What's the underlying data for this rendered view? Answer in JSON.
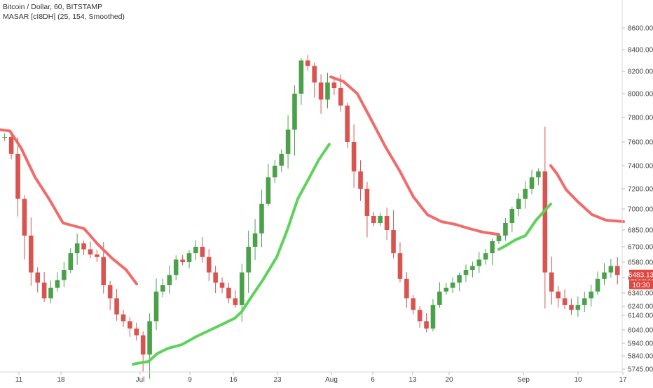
{
  "chart_data": {
    "type": "line",
    "title": "Bitcoin / Dollar, 60, BITSTAMP",
    "subtitle": "MASAR [cI8DH] (25, 154, Smoothed)",
    "y_tick_labels": [
      "5745.00",
      "5840.00",
      "5940.00",
      "6040.00",
      "6140.00",
      "6240.00",
      "6340.00",
      "6460.00",
      "6580.00",
      "6700.00",
      "6850.00",
      "7000.00",
      "7200.00",
      "7400.00",
      "7600.00",
      "7800.00",
      "8000.00",
      "8200.00",
      "8400.00",
      "8600.00"
    ],
    "x_tick_labels": [
      "11",
      "18",
      "Jul",
      "9",
      "16",
      "23",
      "Aug",
      "6",
      "13",
      "20",
      "Sep",
      "10",
      "17"
    ],
    "ylim": [
      5745,
      8600
    ],
    "price_badge": "6483.13",
    "time_badge": "10:30",
    "colors": {
      "bear_line": "#f26b6b",
      "bull_line": "#5ed35b",
      "badge": "#e0473f",
      "candle_up": "#4aa14a",
      "candle_down": "#d9534f"
    },
    "series": [
      {
        "type": "line",
        "color": "#f26b6b",
        "segments": [
          {
            "x": [
              0,
              14,
              30,
              50,
              70,
              90,
              105,
              120,
              140,
              160,
              180,
              195
            ],
            "y": [
              7700,
              7690,
              7550,
              7300,
              7100,
              6900,
              6880,
              6860,
              6720,
              6610,
              6520,
              6410
            ]
          },
          {
            "x": [
              472,
              490,
              510,
              530,
              550,
              570,
              590,
              610,
              630,
              650,
              670,
              690,
              712
            ],
            "y": [
              8150,
              8110,
              8000,
              7780,
              7560,
              7360,
              7120,
              6960,
              6910,
              6890,
              6860,
              6830,
              6810
            ]
          },
          {
            "x": [
              786,
              795,
              808,
              825,
              845,
              865,
              890
            ],
            "y": [
              7400,
              7330,
              7190,
              7070,
              6960,
              6920,
              6910
            ]
          }
        ]
      },
      {
        "type": "line",
        "color": "#5ed35b",
        "segments": [
          {
            "x": [
              190,
              200,
              212,
              225,
              240,
              260,
              280,
              300,
              318,
              335,
              345,
              355,
              375,
              395,
              410,
              425,
              440,
              455,
              470
            ],
            "y": [
              5780,
              5790,
              5800,
              5860,
              5900,
              5930,
              5990,
              6040,
              6080,
              6120,
              6180,
              6280,
              6440,
              6620,
              6850,
              7100,
              7280,
              7450,
              7580
            ]
          },
          {
            "x": [
              712,
              722,
              735,
              750,
              765,
              786
            ],
            "y": [
              6680,
              6710,
              6760,
              6800,
              6920,
              7050
            ]
          }
        ]
      }
    ],
    "ohlc_series": {
      "type": "candlestick",
      "close": [
        7640,
        7500,
        7100,
        6800,
        6500,
        6420,
        6300,
        6380,
        6440,
        6520,
        6650,
        6730,
        6680,
        6640,
        6620,
        6400,
        6300,
        6150,
        6100,
        6050,
        6000,
        5850,
        6100,
        6350,
        6400,
        6480,
        6600,
        6580,
        6650,
        6700,
        6620,
        6500,
        6420,
        6380,
        6300,
        6250,
        6500,
        6700,
        6820,
        7050,
        7300,
        7400,
        7500,
        7700,
        8000,
        8300,
        8250,
        8100,
        7950,
        8100,
        8050,
        7900,
        7600,
        7350,
        7200,
        6950,
        6900,
        6950,
        6850,
        6650,
        6450,
        6300,
        6200,
        6100,
        6050,
        6250,
        6350,
        6380,
        6420,
        6480,
        6520,
        6550,
        6600,
        6650,
        6750,
        6800,
        6900,
        7000,
        7100,
        7200,
        7300,
        7350,
        6500,
        6350,
        6300,
        6250,
        6200,
        6250,
        6300,
        6350,
        6450,
        6500,
        6550,
        6480
      ]
    }
  }
}
